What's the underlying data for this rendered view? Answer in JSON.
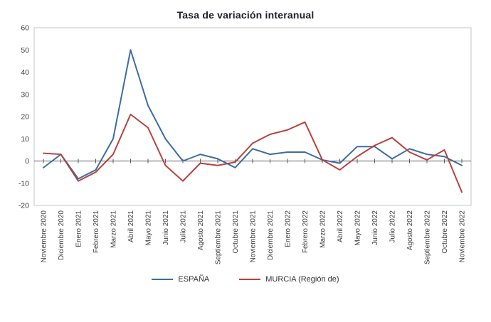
{
  "title": "Tasa de variación interanual",
  "chart_data": {
    "type": "line",
    "title": "Tasa de variación interanual",
    "categories": [
      "Noviembre 2020",
      "Diciembre 2020",
      "Enero 2021",
      "Febrero 2021",
      "Marzo 2021",
      "Abril 2021",
      "Mayo 2021",
      "Junio 2021",
      "Julio 2021",
      "Agosto 2021",
      "Septiembre 2021",
      "Octubre 2021",
      "Noviembre 2021",
      "Diciembre 2021",
      "Enero 2022",
      "Febrero 2022",
      "Marzo 2022",
      "Abril 2022",
      "Mayo 2022",
      "Junio 2022",
      "Julio 2022",
      "Agosto 2022",
      "Septiembre 2022",
      "Octubre 2022",
      "Noviembre 2022"
    ],
    "series": [
      {
        "name": "ESPAÑA",
        "color": "#3c6e9f",
        "values": [
          -3,
          3,
          -8,
          -4,
          10,
          50,
          25,
          10,
          0,
          3,
          1,
          -3,
          5.5,
          3,
          4,
          4,
          0.5,
          -1,
          6.5,
          6.5,
          1,
          5.5,
          3,
          2,
          -2
        ]
      },
      {
        "name": "MURCIA (Región de)",
        "color": "#b8413e",
        "values": [
          3.5,
          3,
          -9,
          -5,
          3,
          21,
          15,
          -2,
          -9,
          -1,
          -2,
          -0.5,
          8,
          12,
          14,
          17.5,
          0.5,
          -4,
          2,
          7,
          10.5,
          4,
          0.5,
          5,
          -14
        ]
      }
    ],
    "ylim": [
      -20,
      60
    ],
    "ytick_step": 10,
    "grid": false,
    "legend_position": "bottom",
    "xlabel": "",
    "ylabel": ""
  }
}
